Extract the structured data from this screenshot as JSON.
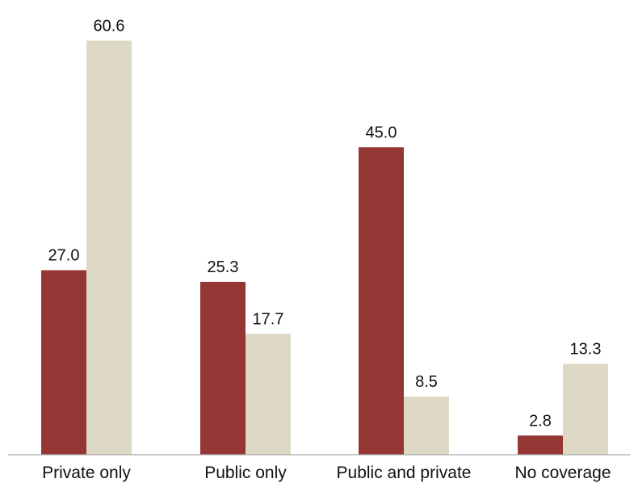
{
  "chart_data": {
    "type": "bar",
    "categories": [
      "Private only",
      "Public only",
      "Public and private",
      "No coverage"
    ],
    "series": [
      {
        "values": [
          27.0,
          25.3,
          45.0,
          2.8
        ],
        "labels": [
          "27.0",
          "25.3",
          "45.0",
          "2.8"
        ],
        "color": "#943634"
      },
      {
        "values": [
          60.6,
          17.7,
          8.5,
          13.3
        ],
        "labels": [
          "60.6",
          "17.7",
          "8.5",
          "13.3"
        ],
        "color": "#DDD9C4"
      }
    ],
    "ylim": [
      0,
      70
    ],
    "grid": false,
    "legend": "none",
    "axis_color": "#A6A6A6"
  }
}
